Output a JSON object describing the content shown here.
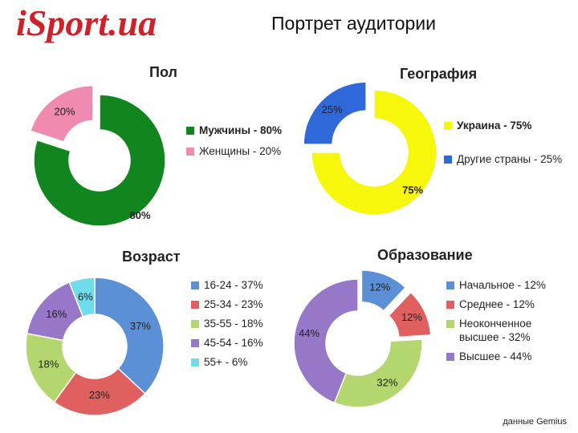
{
  "header": {
    "logo": "iSport.ua",
    "title": "Портрет аудитории"
  },
  "source": "данные Gemius",
  "chart_data": [
    {
      "type": "pie",
      "title": "Пол",
      "slices": [
        {
          "label": "Мужчины - 80%",
          "value": 80,
          "text": "80%",
          "color": "#12861e",
          "exploded": false,
          "bold": true
        },
        {
          "label": "Женщины - 20%",
          "value": 20,
          "text": "20%",
          "color": "#f08ab0",
          "exploded": true,
          "bold": false
        }
      ]
    },
    {
      "type": "pie",
      "title": "География",
      "slices": [
        {
          "label": "Украина - 75%",
          "value": 75,
          "text": "75%",
          "color": "#f7f70b",
          "exploded": false,
          "bold": true
        },
        {
          "label": "Другие страны - 25%",
          "value": 25,
          "text": "25%",
          "color": "#2f68d8",
          "exploded": true,
          "bold": false
        }
      ]
    },
    {
      "type": "pie",
      "title": "Возраст",
      "slices": [
        {
          "label": "16-24 - 37%",
          "value": 37,
          "text": "37%",
          "color": "#5b8fd6",
          "exploded": false,
          "bold": false
        },
        {
          "label": "25-34 - 23%",
          "value": 23,
          "text": "23%",
          "color": "#e06060",
          "exploded": false,
          "bold": false
        },
        {
          "label": "35-55 - 18%",
          "value": 18,
          "text": "18%",
          "color": "#b3d66e",
          "exploded": false,
          "bold": false
        },
        {
          "label": "45-54 - 16%",
          "value": 16,
          "text": "16%",
          "color": "#9778c8",
          "exploded": false,
          "bold": false
        },
        {
          "label": "55+ - 6%",
          "value": 6,
          "text": "6%",
          "color": "#6fdcec",
          "exploded": false,
          "bold": false
        }
      ]
    },
    {
      "type": "pie",
      "title": "Образование",
      "slices": [
        {
          "label": "Начальное - 12%",
          "value": 12,
          "text": "12%",
          "color": "#5b8fd6",
          "exploded": true,
          "bold": false
        },
        {
          "label": "Среднее - 12%",
          "value": 12,
          "text": "12%",
          "color": "#e06060",
          "exploded": true,
          "bold": false
        },
        {
          "label": "Неоконченное высшее - 32%",
          "value": 32,
          "text": "32%",
          "color": "#b3d66e",
          "exploded": false,
          "bold": false
        },
        {
          "label": "Высшее - 44%",
          "value": 44,
          "text": "44%",
          "color": "#9778c8",
          "exploded": false,
          "bold": false
        }
      ]
    }
  ]
}
